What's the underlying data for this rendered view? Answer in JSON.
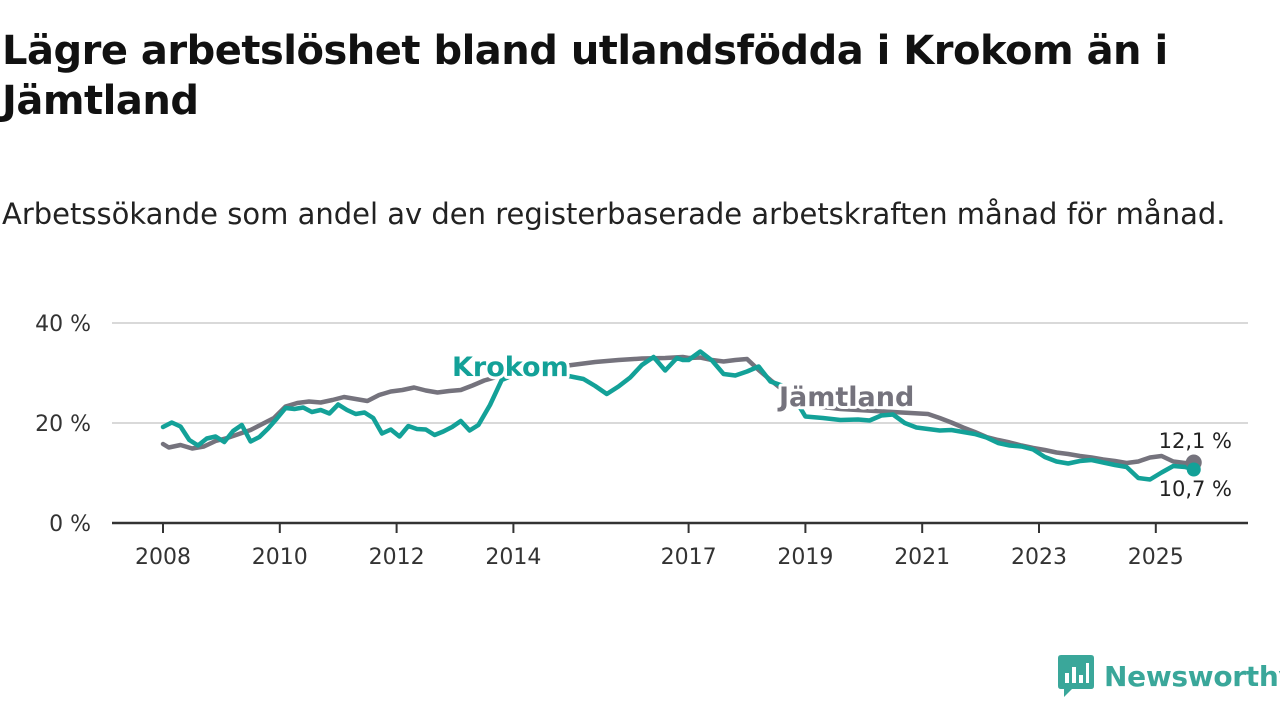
{
  "title": "Lägre arbetslöshet bland utlandsfödda i Krokom än i Jämtland",
  "subtitle": "Arbetssökande som andel av den registerbaserade arbetskraften månad för månad.",
  "brand": {
    "name": "Newsworthy",
    "icon": "newsworthy-logo-icon"
  },
  "colors": {
    "krokom": "#13a198",
    "jamtland": "#75737d",
    "grid": "#d9d9d9",
    "axis": "#333333"
  },
  "chart_data": {
    "type": "line",
    "title": "Lägre arbetslöshet bland utlandsfödda i Krokom än i Jämtland",
    "xlabel": "",
    "ylabel": "",
    "xlim": [
      2008.0,
      2026.5
    ],
    "ylim": [
      0,
      40
    ],
    "grid": true,
    "x_ticks": [
      {
        "value": 2008,
        "label": "2008"
      },
      {
        "value": 2010,
        "label": "2010"
      },
      {
        "value": 2012,
        "label": "2012"
      },
      {
        "value": 2014,
        "label": "2014"
      },
      {
        "value": 2017,
        "label": "2017"
      },
      {
        "value": 2019,
        "label": "2019"
      },
      {
        "value": 2021,
        "label": "2021"
      },
      {
        "value": 2023,
        "label": "2023"
      },
      {
        "value": 2025,
        "label": "2025"
      }
    ],
    "y_ticks": [
      {
        "value": 0,
        "label": "0 %"
      },
      {
        "value": 20,
        "label": "20 %"
      },
      {
        "value": 40,
        "label": "40 %"
      }
    ],
    "series": [
      {
        "name": "Jämtland",
        "label": "Jämtland",
        "color": "#75737d",
        "end_label": "12,1 %",
        "end_value": 12.1,
        "x": [
          2008.0,
          2008.1,
          2008.3,
          2008.5,
          2008.7,
          2008.9,
          2009.1,
          2009.3,
          2009.5,
          2009.7,
          2009.9,
          2010.1,
          2010.3,
          2010.5,
          2010.7,
          2010.9,
          2011.1,
          2011.3,
          2011.5,
          2011.7,
          2011.9,
          2012.1,
          2012.3,
          2012.5,
          2012.7,
          2012.9,
          2013.1,
          2013.3,
          2013.5,
          2013.8,
          2014.2,
          2014.6,
          2015.0,
          2015.4,
          2015.8,
          2016.2,
          2016.6,
          2016.9,
          2017.0,
          2017.2,
          2017.4,
          2017.6,
          2017.8,
          2018.0,
          2018.2,
          2018.4,
          2018.7,
          2019.0,
          2019.3,
          2019.6,
          2019.9,
          2020.2,
          2020.5,
          2020.8,
          2021.1,
          2021.3,
          2021.5,
          2021.7,
          2021.9,
          2022.1,
          2022.3,
          2022.5,
          2022.7,
          2022.9,
          2023.1,
          2023.3,
          2023.5,
          2023.7,
          2023.9,
          2024.1,
          2024.3,
          2024.5,
          2024.7,
          2024.9,
          2025.1,
          2025.3,
          2025.5,
          2025.65
        ],
        "y": [
          15.8,
          15.1,
          15.6,
          14.9,
          15.3,
          16.4,
          17.0,
          17.8,
          18.6,
          19.8,
          21.0,
          23.3,
          24.0,
          24.3,
          24.1,
          24.6,
          25.2,
          24.8,
          24.4,
          25.6,
          26.3,
          26.6,
          27.1,
          26.5,
          26.1,
          26.4,
          26.6,
          27.5,
          28.5,
          29.5,
          30.2,
          31.0,
          31.6,
          32.2,
          32.6,
          32.9,
          33.0,
          33.2,
          33.0,
          33.1,
          32.6,
          32.3,
          32.6,
          32.8,
          30.6,
          28.6,
          25.8,
          24.3,
          23.2,
          22.8,
          22.6,
          22.4,
          22.2,
          22.0,
          21.8,
          21.0,
          20.1,
          19.1,
          18.2,
          17.2,
          16.6,
          16.1,
          15.5,
          15.0,
          14.6,
          14.1,
          13.8,
          13.4,
          13.1,
          12.7,
          12.4,
          12.0,
          12.3,
          13.1,
          13.4,
          12.3,
          12.0,
          12.1
        ]
      },
      {
        "name": "Krokom",
        "label": "Krokom",
        "color": "#13a198",
        "end_label": "10,7 %",
        "end_value": 10.7,
        "x": [
          2008.0,
          2008.15,
          2008.3,
          2008.45,
          2008.6,
          2008.75,
          2008.9,
          2009.05,
          2009.2,
          2009.35,
          2009.5,
          2009.65,
          2009.8,
          2009.95,
          2010.1,
          2010.25,
          2010.4,
          2010.55,
          2010.7,
          2010.85,
          2011.0,
          2011.15,
          2011.3,
          2011.45,
          2011.6,
          2011.75,
          2011.9,
          2012.05,
          2012.2,
          2012.35,
          2012.5,
          2012.65,
          2012.8,
          2012.95,
          2013.1,
          2013.25,
          2013.4,
          2013.6,
          2013.8,
          2014.0,
          2014.3,
          2014.6,
          2014.9,
          2015.2,
          2015.4,
          2015.6,
          2015.8,
          2016.0,
          2016.2,
          2016.4,
          2016.6,
          2016.8,
          2016.9,
          2017.0,
          2017.2,
          2017.4,
          2017.6,
          2017.8,
          2018.0,
          2018.2,
          2018.4,
          2018.6,
          2018.8,
          2019.0,
          2019.3,
          2019.6,
          2019.9,
          2020.1,
          2020.3,
          2020.5,
          2020.7,
          2020.9,
          2021.1,
          2021.3,
          2021.5,
          2021.7,
          2021.9,
          2022.1,
          2022.3,
          2022.5,
          2022.7,
          2022.9,
          2023.1,
          2023.3,
          2023.5,
          2023.7,
          2023.9,
          2024.1,
          2024.3,
          2024.5,
          2024.7,
          2024.9,
          2025.1,
          2025.3,
          2025.5,
          2025.65
        ],
        "y": [
          19.2,
          20.1,
          19.3,
          16.6,
          15.5,
          16.9,
          17.3,
          16.2,
          18.4,
          19.6,
          16.3,
          17.2,
          18.9,
          20.9,
          23.0,
          22.8,
          23.1,
          22.2,
          22.6,
          21.9,
          23.7,
          22.6,
          21.8,
          22.1,
          21.0,
          17.9,
          18.7,
          17.3,
          19.4,
          18.8,
          18.7,
          17.6,
          18.3,
          19.2,
          20.4,
          18.5,
          19.6,
          23.6,
          28.6,
          29.6,
          30.1,
          30.2,
          29.5,
          28.8,
          27.4,
          25.8,
          27.3,
          29.1,
          31.6,
          33.2,
          30.5,
          33.0,
          32.6,
          32.6,
          34.3,
          32.5,
          29.8,
          29.5,
          30.3,
          31.3,
          28.3,
          27.5,
          25.2,
          21.3,
          21.0,
          20.6,
          20.7,
          20.5,
          21.5,
          21.7,
          20.0,
          19.1,
          18.8,
          18.5,
          18.6,
          18.2,
          17.8,
          17.1,
          16.0,
          15.5,
          15.3,
          14.7,
          13.2,
          12.3,
          11.9,
          12.4,
          12.6,
          12.1,
          11.6,
          11.2,
          9.0,
          8.7,
          10.1,
          11.4,
          11.2,
          10.7
        ]
      }
    ]
  }
}
